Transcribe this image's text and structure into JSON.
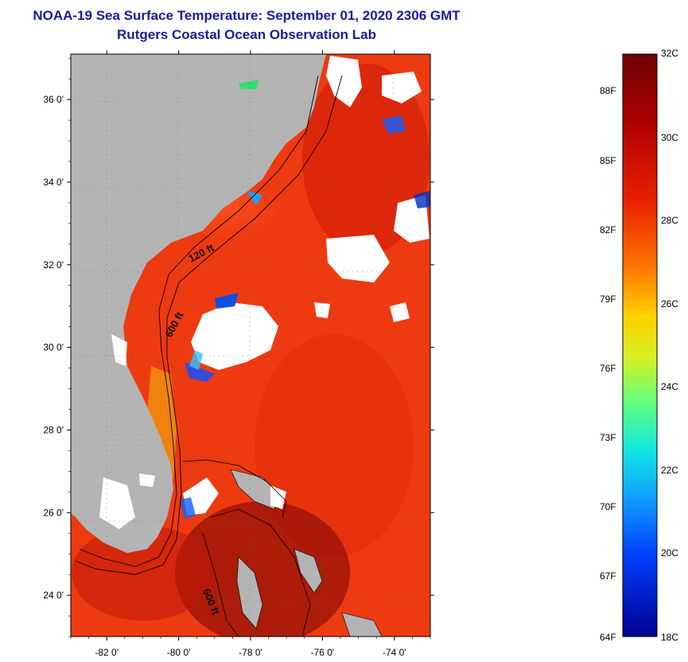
{
  "title": "NOAA-19 Sea Surface Temperature:  September 01, 2020 2306 GMT",
  "subtitle": "Rutgers Coastal Ocean Observation Lab",
  "map": {
    "lat_ticks": [
      {
        "label": "36 0'",
        "value": 36
      },
      {
        "label": "34 0'",
        "value": 34
      },
      {
        "label": "32 0'",
        "value": 32
      },
      {
        "label": "30 0'",
        "value": 30
      },
      {
        "label": "28 0'",
        "value": 28
      },
      {
        "label": "26 0'",
        "value": 26
      },
      {
        "label": "24 0'",
        "value": 24
      }
    ],
    "lon_ticks": [
      {
        "label": "-82 0'",
        "value": -82
      },
      {
        "label": "-80 0'",
        "value": -80
      },
      {
        "label": "-78 0'",
        "value": -78
      },
      {
        "label": "-76 0'",
        "value": -76
      },
      {
        "label": "-74 0'",
        "value": -74
      }
    ],
    "lat_range": [
      23,
      37.1
    ],
    "lon_range": [
      -83,
      -73
    ],
    "contour_labels": [
      "120 ft",
      "600 ft",
      "600 ft"
    ],
    "colors": {
      "land": "#b4b4b4",
      "ocean": "#ee3a10",
      "cloud": "#ffffff"
    }
  },
  "colorbar": {
    "celsius_labels": [
      "32C",
      "30C",
      "28C",
      "26C",
      "24C",
      "22C",
      "20C",
      "18C"
    ],
    "celsius_values": [
      32,
      30,
      28,
      26,
      24,
      22,
      20,
      18
    ],
    "fahrenheit_labels": [
      "88F",
      "85F",
      "82F",
      "79F",
      "76F",
      "73F",
      "70F",
      "67F",
      "64F"
    ],
    "fahrenheit_values": [
      88,
      85,
      82,
      79,
      76,
      73,
      70,
      67,
      64
    ],
    "range_c": [
      18,
      32
    ]
  }
}
